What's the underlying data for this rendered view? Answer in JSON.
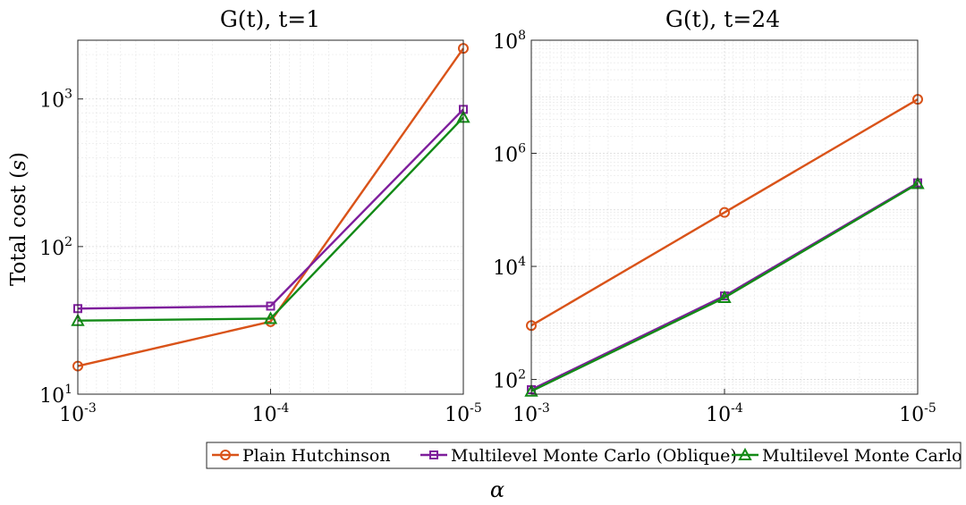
{
  "chart_data": [
    {
      "type": "line",
      "title": "G(t), t=1",
      "xscale": "log",
      "yscale": "log",
      "x": [
        0.001,
        0.0001,
        1e-05
      ],
      "xlim": [
        0.001,
        1e-05
      ],
      "ylim": [
        10,
        2500
      ],
      "xticks": [
        {
          "value": 0.001,
          "base": "10",
          "exp": "-3"
        },
        {
          "value": 0.0001,
          "base": "10",
          "exp": "-4"
        },
        {
          "value": 1e-05,
          "base": "10",
          "exp": "-5"
        }
      ],
      "yticks": [
        {
          "value": 10,
          "base": "10",
          "exp": "1"
        },
        {
          "value": 100,
          "base": "10",
          "exp": "2"
        },
        {
          "value": 1000,
          "base": "10",
          "exp": "3"
        }
      ],
      "ylabel": "Total cost (s)",
      "series": [
        {
          "name": "Plain Hutchinson",
          "values": [
            15.5,
            31,
            2200
          ]
        },
        {
          "name": "Multilevel Monte Carlo (Oblique)",
          "values": [
            38,
            39.5,
            850
          ]
        },
        {
          "name": "Multilevel Monte Carlo (Orthogonal)",
          "values": [
            31.5,
            32.5,
            750
          ]
        }
      ]
    },
    {
      "type": "line",
      "title": "G(t), t=24",
      "xscale": "log",
      "yscale": "log",
      "x": [
        0.001,
        0.0001,
        1e-05
      ],
      "xlim": [
        0.001,
        1e-05
      ],
      "ylim": [
        55,
        100000000
      ],
      "xticks": [
        {
          "value": 0.001,
          "base": "10",
          "exp": "-3"
        },
        {
          "value": 0.0001,
          "base": "10",
          "exp": "-4"
        },
        {
          "value": 1e-05,
          "base": "10",
          "exp": "-5"
        }
      ],
      "yticks": [
        {
          "value": 100,
          "base": "10",
          "exp": "2"
        },
        {
          "value": 10000,
          "base": "10",
          "exp": "4"
        },
        {
          "value": 1000000,
          "base": "10",
          "exp": "6"
        },
        {
          "value": 100000000,
          "base": "10",
          "exp": "8"
        }
      ],
      "series": [
        {
          "name": "Plain Hutchinson",
          "values": [
            900,
            90000,
            9000000
          ]
        },
        {
          "name": "Multilevel Monte Carlo (Oblique)",
          "values": [
            66,
            3000,
            300000
          ]
        },
        {
          "name": "Multilevel Monte Carlo (Orthogonal)",
          "values": [
            62,
            2800,
            290000
          ]
        }
      ]
    }
  ],
  "series_style": [
    {
      "name": "Plain Hutchinson",
      "color": "#D95319",
      "marker": "circle"
    },
    {
      "name": "Multilevel Monte Carlo (Oblique)",
      "color": "#7E1E9C",
      "marker": "square"
    },
    {
      "name": "Multilevel Monte Carlo (Orthogonal)",
      "color": "#138A17",
      "marker": "triangle"
    }
  ],
  "legend": {
    "items": [
      "Plain Hutchinson",
      "Multilevel Monte Carlo (Oblique)",
      "Multilevel Monte Carlo (Orthogonal)"
    ]
  },
  "shared_xlabel": "α",
  "ylabel_text": "Total cost (",
  "ylabel_var": "s",
  "ylabel_close": ")"
}
